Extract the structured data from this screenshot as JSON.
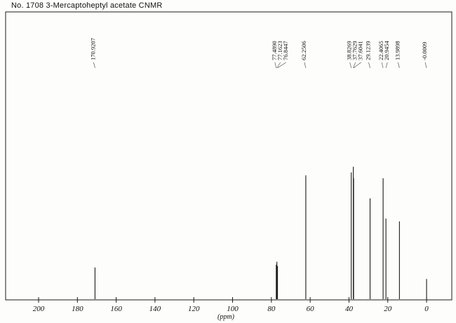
{
  "title": "No. 1708 3-Mercaptoheptyl acetate CNMR",
  "chart_data": {
    "type": "line",
    "subtype": "13C-NMR spectrum (peak/stick plot)",
    "title": "No. 1708 3-Mercaptoheptyl acetate CNMR",
    "xlabel": "(ppm)",
    "ylabel": "",
    "x_axis_reversed": true,
    "xlim": [
      217,
      -13
    ],
    "x_ticks": [
      200,
      180,
      160,
      140,
      120,
      100,
      80,
      60,
      40,
      20,
      0
    ],
    "grid": false,
    "legend": "none",
    "line_color": "#1a1a1a",
    "peaks": [
      {
        "ppm": 170.9207,
        "label": "170.9207",
        "rel_height": 0.11
      },
      {
        "ppm": 77.489,
        "label": "77.4890",
        "rel_height": 0.12
      },
      {
        "ppm": 77.1623,
        "label": "77.1623",
        "rel_height": 0.13
      },
      {
        "ppm": 76.8447,
        "label": "76.8447",
        "rel_height": 0.115
      },
      {
        "ppm": 62.2506,
        "label": "62.2506",
        "rel_height": 0.43
      },
      {
        "ppm": 38.8269,
        "label": "38.8269",
        "rel_height": 0.44
      },
      {
        "ppm": 37.7629,
        "label": "37.7629",
        "rel_height": 0.46
      },
      {
        "ppm": 37.6041,
        "label": "37.6041",
        "rel_height": 0.42
      },
      {
        "ppm": 29.1239,
        "label": "29.1239",
        "rel_height": 0.35
      },
      {
        "ppm": 22.4065,
        "label": "22.4065",
        "rel_height": 0.42
      },
      {
        "ppm": 20.9454,
        "label": "20.9454",
        "rel_height": 0.28
      },
      {
        "ppm": 13.9898,
        "label": "13.9898",
        "rel_height": 0.27
      },
      {
        "ppm": -0.0009,
        "label": "-0.0009",
        "rel_height": 0.07
      }
    ]
  }
}
